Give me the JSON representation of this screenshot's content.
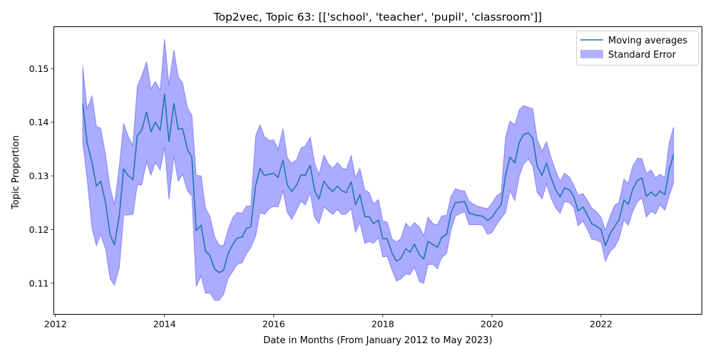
{
  "chart_data": {
    "type": "line",
    "title": "Top2vec, Topic 63: [['school', 'teacher', 'pupil', 'classroom']]",
    "xlabel": "Date in Months (From January 2012 to May 2023)",
    "ylabel": "Topic Proportion",
    "xlim": [
      2011.97,
      2023.85
    ],
    "ylim": [
      0.1042,
      0.1578
    ],
    "xticks": [
      2012,
      2014,
      2016,
      2018,
      2020,
      2022
    ],
    "yticks": [
      0.11,
      0.12,
      0.13,
      0.14,
      0.15
    ],
    "ytick_labels": [
      "0.11",
      "0.12",
      "0.13",
      "0.14",
      "0.15"
    ],
    "grid": false,
    "legend_position": "top-right",
    "colors": {
      "line": "#1f77b4",
      "band": "#0000ff",
      "band_alpha": 0.33
    },
    "series": [
      {
        "name": "Moving averages",
        "kind": "line",
        "x": [
          2012.5,
          2012.58,
          2012.67,
          2012.75,
          2012.83,
          2012.92,
          2013.0,
          2013.08,
          2013.17,
          2013.25,
          2013.33,
          2013.42,
          2013.5,
          2013.58,
          2013.67,
          2013.75,
          2013.83,
          2013.92,
          2014.0,
          2014.08,
          2014.17,
          2014.25,
          2014.33,
          2014.42,
          2014.5,
          2014.58,
          2014.67,
          2014.75,
          2014.83,
          2014.92,
          2015.0,
          2015.08,
          2015.17,
          2015.25,
          2015.33,
          2015.42,
          2015.5,
          2015.58,
          2015.67,
          2015.75,
          2015.83,
          2015.92,
          2016.0,
          2016.08,
          2016.17,
          2016.25,
          2016.33,
          2016.42,
          2016.5,
          2016.58,
          2016.67,
          2016.75,
          2016.83,
          2016.92,
          2017.0,
          2017.08,
          2017.17,
          2017.25,
          2017.33,
          2017.42,
          2017.5,
          2017.58,
          2017.67,
          2017.75,
          2017.83,
          2017.92,
          2018.0,
          2018.08,
          2018.17,
          2018.25,
          2018.33,
          2018.42,
          2018.5,
          2018.58,
          2018.67,
          2018.75,
          2018.83,
          2018.92,
          2019.0,
          2019.08,
          2019.17,
          2019.25,
          2019.33,
          2019.42,
          2019.5,
          2019.58,
          2019.67,
          2019.75,
          2019.83,
          2019.92,
          2020.0,
          2020.08,
          2020.17,
          2020.25,
          2020.33,
          2020.42,
          2020.5,
          2020.58,
          2020.67,
          2020.75,
          2020.83,
          2020.92,
          2021.0,
          2021.08,
          2021.17,
          2021.25,
          2021.33,
          2021.42,
          2021.5,
          2021.58,
          2021.67,
          2021.75,
          2021.83,
          2021.92,
          2022.0,
          2022.08,
          2022.17,
          2022.25,
          2022.33,
          2022.42,
          2022.5,
          2022.58,
          2022.67,
          2022.75,
          2022.83,
          2022.92,
          2023.0,
          2023.08,
          2023.17,
          2023.25,
          2023.33
        ],
        "y": [
          0.1435,
          0.1362,
          0.1325,
          0.1281,
          0.129,
          0.1249,
          0.1191,
          0.1171,
          0.1226,
          0.1313,
          0.1301,
          0.1293,
          0.1375,
          0.1385,
          0.1419,
          0.1382,
          0.14,
          0.1385,
          0.1452,
          0.1364,
          0.1435,
          0.1387,
          0.1388,
          0.1349,
          0.1335,
          0.1198,
          0.1208,
          0.116,
          0.1152,
          0.1126,
          0.112,
          0.1124,
          0.1157,
          0.1172,
          0.1184,
          0.1186,
          0.1202,
          0.1205,
          0.1282,
          0.1314,
          0.1301,
          0.1303,
          0.1305,
          0.1297,
          0.1329,
          0.1283,
          0.1271,
          0.1283,
          0.1302,
          0.1301,
          0.132,
          0.1273,
          0.1257,
          0.129,
          0.1279,
          0.1271,
          0.1281,
          0.1272,
          0.1269,
          0.1289,
          0.1246,
          0.1265,
          0.1224,
          0.1224,
          0.1211,
          0.1218,
          0.1183,
          0.1183,
          0.1156,
          0.1141,
          0.1146,
          0.1164,
          0.1158,
          0.1173,
          0.1153,
          0.1145,
          0.1178,
          0.1172,
          0.1167,
          0.1185,
          0.1191,
          0.1231,
          0.125,
          0.1251,
          0.1252,
          0.1231,
          0.1228,
          0.1226,
          0.1225,
          0.1217,
          0.1223,
          0.1235,
          0.1247,
          0.1301,
          0.1335,
          0.1324,
          0.1362,
          0.1377,
          0.138,
          0.137,
          0.1318,
          0.1301,
          0.1324,
          0.1297,
          0.1274,
          0.1261,
          0.1278,
          0.1274,
          0.1262,
          0.1235,
          0.1242,
          0.1227,
          0.1211,
          0.1206,
          0.12,
          0.117,
          0.1193,
          0.1206,
          0.1218,
          0.1255,
          0.1247,
          0.1275,
          0.1292,
          0.1296,
          0.1262,
          0.127,
          0.1262,
          0.1272,
          0.1265,
          0.1311,
          0.134
        ]
      },
      {
        "name": "Standard Error",
        "kind": "band",
        "lower": [
          0.1362,
          0.1295,
          0.1202,
          0.117,
          0.1191,
          0.1163,
          0.1109,
          0.1096,
          0.1128,
          0.1227,
          0.1227,
          0.1228,
          0.1283,
          0.1283,
          0.1326,
          0.1301,
          0.1325,
          0.1311,
          0.1353,
          0.1256,
          0.1336,
          0.129,
          0.1303,
          0.1272,
          0.1262,
          0.1094,
          0.1113,
          0.1081,
          0.1082,
          0.1068,
          0.1068,
          0.1079,
          0.111,
          0.1122,
          0.1135,
          0.1138,
          0.1155,
          0.1166,
          0.1188,
          0.1232,
          0.1228,
          0.1239,
          0.1243,
          0.1242,
          0.1272,
          0.1232,
          0.1219,
          0.1236,
          0.1253,
          0.1246,
          0.1268,
          0.1222,
          0.1211,
          0.1242,
          0.1235,
          0.1228,
          0.1237,
          0.1228,
          0.1229,
          0.1239,
          0.1195,
          0.1213,
          0.1174,
          0.1178,
          0.1174,
          0.1185,
          0.1149,
          0.115,
          0.1124,
          0.1104,
          0.1108,
          0.1117,
          0.1116,
          0.113,
          0.1103,
          0.11,
          0.1135,
          0.1135,
          0.1127,
          0.1147,
          0.1156,
          0.1198,
          0.1225,
          0.123,
          0.1233,
          0.1209,
          0.1209,
          0.1209,
          0.1208,
          0.1191,
          0.1194,
          0.1208,
          0.1221,
          0.1232,
          0.1272,
          0.1254,
          0.1299,
          0.1322,
          0.1331,
          0.1318,
          0.1269,
          0.1257,
          0.1285,
          0.1259,
          0.124,
          0.123,
          0.1252,
          0.125,
          0.1241,
          0.1207,
          0.1216,
          0.12,
          0.1182,
          0.118,
          0.1176,
          0.1141,
          0.116,
          0.1167,
          0.1183,
          0.1218,
          0.1208,
          0.1233,
          0.1252,
          0.1259,
          0.1223,
          0.1234,
          0.1229,
          0.1246,
          0.1236,
          0.1263,
          0.1286
        ],
        "upper": [
          0.1505,
          0.1425,
          0.1449,
          0.1392,
          0.1389,
          0.1338,
          0.1279,
          0.1247,
          0.1318,
          0.1398,
          0.1375,
          0.1357,
          0.1467,
          0.1486,
          0.1513,
          0.1462,
          0.1476,
          0.146,
          0.1555,
          0.147,
          0.1535,
          0.1485,
          0.1473,
          0.1427,
          0.1413,
          0.1301,
          0.13,
          0.124,
          0.1225,
          0.1186,
          0.1171,
          0.117,
          0.1201,
          0.1222,
          0.1232,
          0.123,
          0.1244,
          0.1244,
          0.1375,
          0.1395,
          0.1373,
          0.1366,
          0.1367,
          0.135,
          0.1388,
          0.1334,
          0.1323,
          0.133,
          0.1352,
          0.1356,
          0.1372,
          0.1324,
          0.1303,
          0.1339,
          0.1323,
          0.1314,
          0.1325,
          0.1315,
          0.1312,
          0.1338,
          0.1297,
          0.1314,
          0.1274,
          0.1269,
          0.1248,
          0.1256,
          0.1216,
          0.1214,
          0.1183,
          0.1177,
          0.1183,
          0.1212,
          0.1203,
          0.1213,
          0.1205,
          0.1189,
          0.1223,
          0.1211,
          0.1209,
          0.1225,
          0.1227,
          0.1262,
          0.1276,
          0.1273,
          0.1272,
          0.1253,
          0.1247,
          0.1243,
          0.1241,
          0.1239,
          0.1249,
          0.1262,
          0.1269,
          0.1372,
          0.1402,
          0.1395,
          0.1423,
          0.1431,
          0.1428,
          0.1425,
          0.1368,
          0.1346,
          0.1364,
          0.1336,
          0.1309,
          0.129,
          0.1305,
          0.1298,
          0.1283,
          0.1264,
          0.1267,
          0.1255,
          0.124,
          0.1233,
          0.1223,
          0.1199,
          0.1226,
          0.1245,
          0.1251,
          0.1294,
          0.1286,
          0.1318,
          0.1333,
          0.1332,
          0.1305,
          0.1311,
          0.1296,
          0.1303,
          0.1297,
          0.1362,
          0.1391
        ]
      }
    ]
  }
}
